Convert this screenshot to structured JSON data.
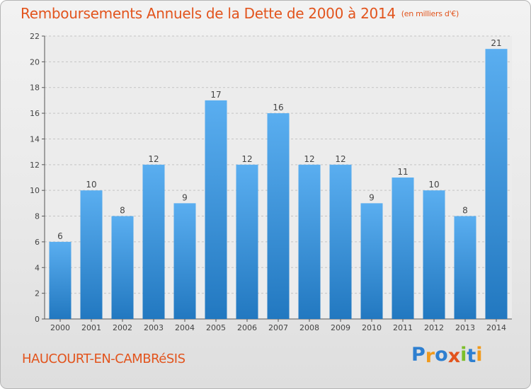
{
  "header": {
    "title": "Remboursements Annuels de la Dette de 2000 à 2014",
    "unit": "(en milliers d'€)"
  },
  "footer": {
    "town": "HAUCOURT-EN-CAMBRéSIS",
    "logo_letters": [
      {
        "ch": "P",
        "color": "#2e7fd0"
      },
      {
        "ch": "r",
        "color": "#f19a1c"
      },
      {
        "ch": "o",
        "color": "#2e7fd0"
      },
      {
        "ch": "x",
        "color": "#e2541d"
      },
      {
        "ch": "i",
        "color": "#7cbf2a"
      },
      {
        "ch": "t",
        "color": "#2e7fd0"
      },
      {
        "ch": "i",
        "color": "#f19a1c"
      }
    ]
  },
  "chart_data": {
    "type": "bar",
    "title": "Remboursements Annuels de la Dette de 2000 à 2014",
    "subtitle": "(en milliers d'€)",
    "categories": [
      "2000",
      "2001",
      "2002",
      "2003",
      "2004",
      "2005",
      "2006",
      "2007",
      "2008",
      "2009",
      "2010",
      "2011",
      "2012",
      "2013",
      "2014"
    ],
    "values": [
      6,
      10,
      8,
      12,
      9,
      17,
      12,
      16,
      12,
      12,
      9,
      11,
      10,
      8,
      21
    ],
    "ylim": [
      0,
      22
    ],
    "yticks": [
      0,
      2,
      4,
      6,
      8,
      10,
      12,
      14,
      16,
      18,
      20,
      22
    ],
    "grid": true,
    "bar_color_top": "#5aaef0",
    "bar_color_bottom": "#2278c0"
  }
}
